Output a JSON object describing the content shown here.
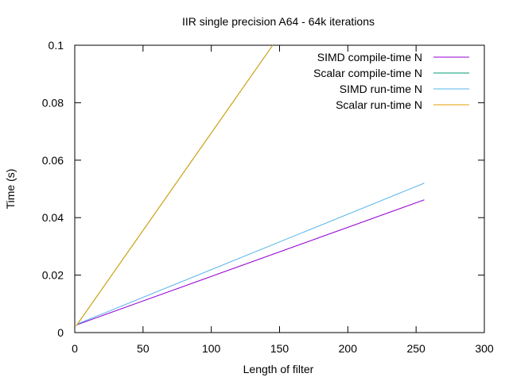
{
  "chart_data": {
    "type": "line",
    "title": "IIR single precision A64 - 64k iterations",
    "xlabel": "Length of filter",
    "ylabel": "Time (s)",
    "xlim": [
      0,
      300
    ],
    "ylim": [
      0,
      0.1
    ],
    "x_ticks": [
      0,
      50,
      100,
      150,
      200,
      250,
      300
    ],
    "y_ticks": [
      0,
      0.02,
      0.04,
      0.06,
      0.08,
      0.1
    ],
    "x_tick_labels": [
      "0",
      "50",
      "100",
      "150",
      "200",
      "250",
      "300"
    ],
    "y_tick_labels": [
      "0",
      "0.02",
      "0.04",
      "0.06",
      "0.08",
      "0.1"
    ],
    "grid": false,
    "legend_position": "top-right",
    "series": [
      {
        "name": "SIMD compile-time N",
        "color": "#9400d3",
        "x": [
          2,
          256
        ],
        "y": [
          0.0028,
          0.0462
        ]
      },
      {
        "name": "Scalar compile-time N",
        "color": "#009e73",
        "x": [
          1,
          145
        ],
        "y": [
          0.0023,
          0.1
        ]
      },
      {
        "name": "SIMD run-time N",
        "color": "#56b4e9",
        "x": [
          2,
          256
        ],
        "y": [
          0.003,
          0.052
        ]
      },
      {
        "name": "Scalar run-time N",
        "color": "#e69f00",
        "x": [
          1,
          145
        ],
        "y": [
          0.0023,
          0.1
        ]
      }
    ]
  }
}
